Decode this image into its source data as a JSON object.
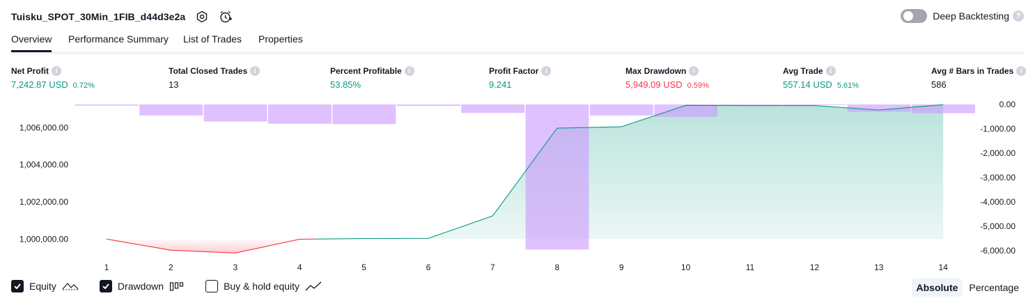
{
  "header": {
    "strategy_title": "Tuisku_SPOT_30Min_1FIB_d44d3e2a",
    "deep_backtesting_label": "Deep Backtesting",
    "deep_backtesting_enabled": false
  },
  "tabs": [
    {
      "label": "Overview",
      "active": true
    },
    {
      "label": "Performance Summary",
      "active": false
    },
    {
      "label": "List of Trades",
      "active": false
    },
    {
      "label": "Properties",
      "active": false
    }
  ],
  "metrics": [
    {
      "label": "Net Profit",
      "value": "7,242.87 USD",
      "pct": "0.72%",
      "color": "#089981"
    },
    {
      "label": "Total Closed Trades",
      "value": "13",
      "pct": "",
      "color": "#131722"
    },
    {
      "label": "Percent Profitable",
      "value": "53.85%",
      "pct": "",
      "color": "#089981"
    },
    {
      "label": "Profit Factor",
      "value": "9.241",
      "pct": "",
      "color": "#089981"
    },
    {
      "label": "Max Drawdown",
      "value": "5,949.09 USD",
      "pct": "0.59%",
      "color": "#f23645"
    },
    {
      "label": "Avg Trade",
      "value": "557.14 USD",
      "pct": "5.61%",
      "color": "#089981"
    },
    {
      "label": "Avg # Bars in Trades",
      "value": "586",
      "pct": "",
      "color": "#131722"
    }
  ],
  "chart_data": {
    "type": "line",
    "x": [
      1,
      2,
      3,
      4,
      5,
      6,
      7,
      8,
      9,
      10,
      11,
      12,
      13,
      14
    ],
    "x_tick_labels": [
      "1",
      "2",
      "3",
      "4",
      "5",
      "6",
      "7",
      "8",
      "9",
      "10",
      "11",
      "12",
      "13",
      "14"
    ],
    "series": [
      {
        "name": "Equity",
        "values": [
          1000000,
          999400,
          999250,
          999990,
          1000030,
          1000040,
          1001250,
          1005970,
          1006050,
          1007200,
          1007190,
          1007190,
          1006950,
          1007240
        ],
        "color": "#089981",
        "negative_color": "#f23645"
      },
      {
        "name": "Drawdown",
        "values": [
          -50,
          -450,
          -700,
          -790,
          -810,
          -60,
          -350,
          -5950,
          -450,
          -510,
          -30,
          0,
          -300,
          -360
        ],
        "color": "#cc98ff"
      }
    ],
    "left_axis": {
      "ticks": [
        "1,000,000.00",
        "1,002,000.00",
        "1,004,000.00",
        "1,006,000.00"
      ],
      "tick_values": [
        1000000,
        1002000,
        1004000,
        1006000
      ],
      "ylim": [
        999000,
        1007250
      ]
    },
    "right_axis": {
      "ticks": [
        "0.00",
        "-1,000.00",
        "-2,000.00",
        "-3,000.00",
        "-4,000.00",
        "-5,000.00",
        "-6,000.00"
      ],
      "tick_values": [
        0,
        -1000,
        -2000,
        -3000,
        -4000,
        -5000,
        -6000
      ],
      "ylim": [
        -6000,
        0
      ]
    },
    "baseline": 1000000,
    "grid": false
  },
  "legend": {
    "items": [
      {
        "label": "Equity",
        "checked": true,
        "icon": "equity-line-icon"
      },
      {
        "label": "Drawdown",
        "checked": true,
        "icon": "drawdown-bars-icon"
      },
      {
        "label": "Buy & hold equity",
        "checked": false,
        "icon": "buy-hold-line-icon"
      }
    ]
  },
  "view_mode": {
    "options": [
      "Absolute",
      "Percentage"
    ],
    "selected": "Absolute"
  },
  "colors": {
    "accent": "#131722",
    "profit": "#089981",
    "loss": "#f23645",
    "drawdown": "#cc98ff"
  }
}
